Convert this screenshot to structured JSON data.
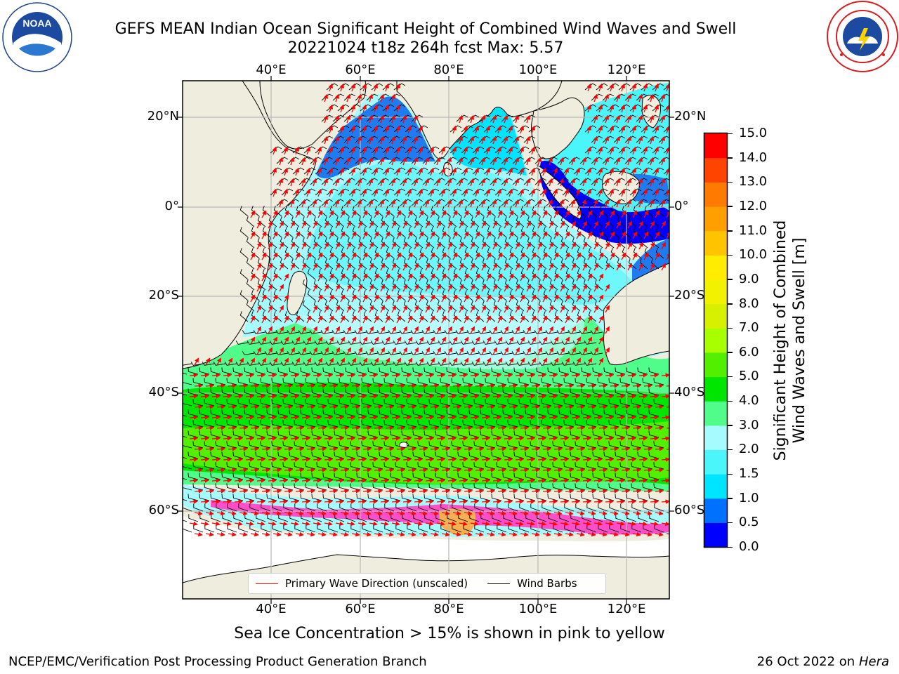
{
  "title": {
    "line1": "GEFS MEAN Indian Ocean Significant Height of Combined Wind Waves and Swell",
    "line2": "20221024 t18z 264h fcst   Max: 5.57"
  },
  "logos": {
    "noaa_text": "NOAA",
    "noaa_ring": "NATIONAL OCEANIC AND ATMOSPHERIC ADMINISTRATION · U.S. DEPARTMENT OF COMMERCE",
    "nws_ring": "NATIONAL WEATHER SERVICE"
  },
  "map": {
    "lon_labels": [
      "40°E",
      "60°E",
      "80°E",
      "100°E",
      "120°E"
    ],
    "lat_labels": [
      "20°N",
      "0°",
      "20°S",
      "40°S",
      "60°S"
    ],
    "legend": {
      "wave_dir": "Primary Wave Direction (unscaled)",
      "wind_barbs": "Wind Barbs"
    }
  },
  "colorbar": {
    "label_line1": "Significant Height of Combined",
    "label_line2": "Wind Waves and Swell [m]",
    "ticks": [
      "0.0",
      "0.5",
      "1.0",
      "1.5",
      "2.0",
      "3.0",
      "4.0",
      "5.0",
      "6.0",
      "7.0",
      "8.0",
      "9.0",
      "10.0",
      "11.0",
      "12.0",
      "13.0",
      "14.0",
      "15.0"
    ],
    "colors": [
      "#0000ff",
      "#0070ff",
      "#00e5ff",
      "#4af6fa",
      "#a6fbff",
      "#50fc8a",
      "#00e600",
      "#52f000",
      "#a8ff00",
      "#d6f000",
      "#f2f200",
      "#ffec00",
      "#ffc400",
      "#ff9f00",
      "#ff7a00",
      "#ff4400",
      "#ff0000"
    ],
    "sea_ice_colors": [
      "#ff4fc8",
      "#ff8ad8",
      "#f7b050",
      "#f4ce3e"
    ],
    "land_color": "#efedde"
  },
  "sea_ice_note": "Sea Ice Concentration > 15% is shown in pink to yellow",
  "footer": {
    "left": "NCEP/EMC/Verification Post Processing Product Generation Branch",
    "right_prefix": "26 Oct 2022 on ",
    "right_machine": "Hera"
  }
}
